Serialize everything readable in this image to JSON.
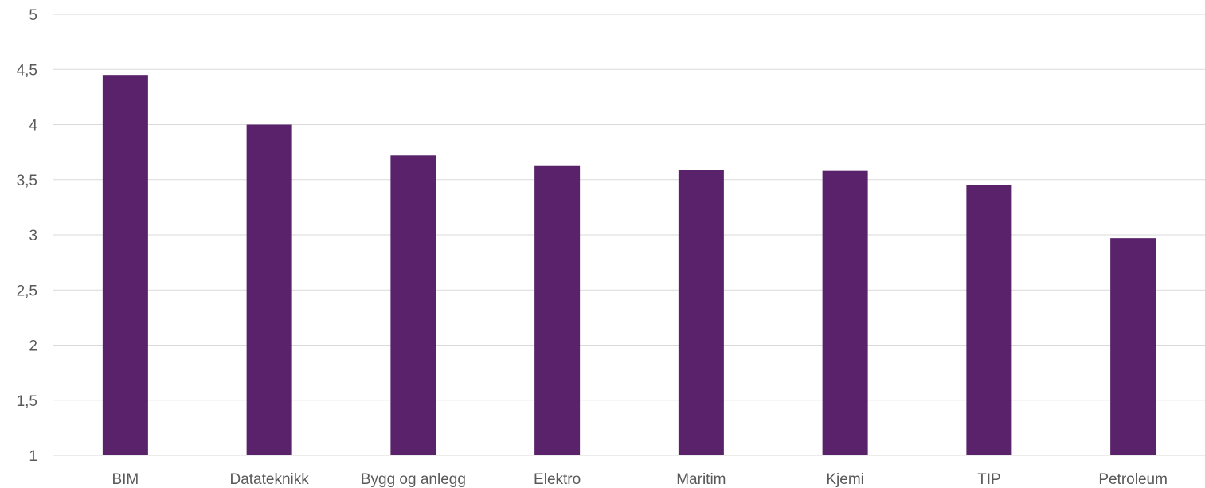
{
  "chart_data": {
    "type": "bar",
    "title": "",
    "xlabel": "",
    "ylabel": "",
    "categories": [
      "BIM",
      "Datateknikk",
      "Bygg og anlegg",
      "Elektro",
      "Maritim",
      "Kjemi",
      "TIP",
      "Petroleum"
    ],
    "values": [
      4.45,
      4.0,
      3.72,
      3.63,
      3.59,
      3.58,
      3.45,
      2.97
    ],
    "ylim": [
      1,
      5
    ],
    "yticks": [
      1,
      1.5,
      2,
      2.5,
      3,
      3.5,
      4,
      4.5,
      5
    ],
    "ytick_labels": [
      "1",
      "1,5",
      "2",
      "2,5",
      "3",
      "3,5",
      "4",
      "4,5",
      "5"
    ],
    "bar_color": "#59226b",
    "grid": true,
    "legend": "none"
  }
}
